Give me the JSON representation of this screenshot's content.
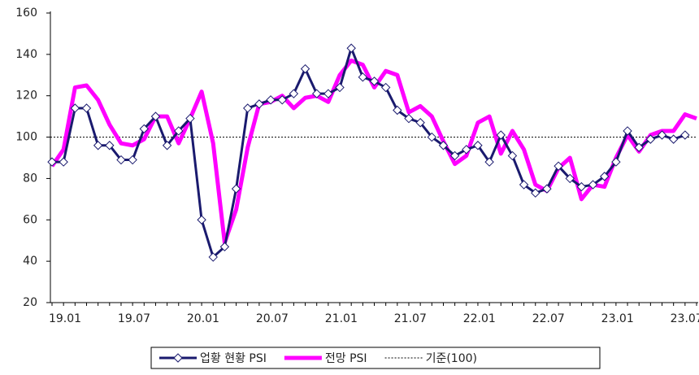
{
  "chart_data": {
    "type": "line",
    "categories": [
      "19.01",
      null,
      null,
      null,
      null,
      null,
      "19.07",
      null,
      null,
      null,
      null,
      null,
      "20.01",
      null,
      null,
      null,
      null,
      null,
      "20.07",
      null,
      null,
      null,
      null,
      null,
      "21.01",
      null,
      null,
      null,
      null,
      null,
      "21.07",
      null,
      null,
      null,
      null,
      null,
      "22.01",
      null,
      null,
      null,
      null,
      null,
      "22.07",
      null,
      null,
      null,
      null,
      null,
      "23.01",
      null,
      null,
      null,
      null,
      null,
      "23.07",
      null,
      null
    ],
    "series": [
      {
        "name": "업황 현황 PSI",
        "color": "#1a1a6e",
        "marker": "diamond",
        "values": [
          88,
          88,
          114,
          114,
          96,
          96,
          89,
          89,
          104,
          110,
          96,
          103,
          109,
          60,
          42,
          47,
          75,
          114,
          116,
          118,
          118,
          121,
          133,
          121,
          121,
          124,
          143,
          129,
          127,
          124,
          113,
          109,
          107,
          100,
          96,
          91,
          94,
          96,
          88,
          101,
          91,
          77,
          73,
          75,
          86,
          80,
          76,
          77,
          81,
          88,
          103,
          95,
          99,
          101,
          99,
          101,
          null
        ]
      },
      {
        "name": "전망 PSI",
        "color": "#ff00ff",
        "values": [
          86,
          94,
          124,
          125,
          118,
          106,
          97,
          96,
          99,
          110,
          110,
          97,
          109,
          122,
          97,
          49,
          65,
          95,
          116,
          117,
          120,
          114,
          119,
          120,
          117,
          130,
          137,
          135,
          124,
          132,
          130,
          112,
          115,
          110,
          98,
          87,
          91,
          107,
          110,
          92,
          103,
          94,
          77,
          74,
          85,
          90,
          70,
          77,
          76,
          90,
          101,
          93,
          101,
          103,
          103,
          111,
          109
        ]
      }
    ],
    "reference": {
      "value": 100,
      "label": "기준(100)"
    },
    "ylim": [
      20,
      160
    ],
    "yticks": [
      20,
      40,
      60,
      80,
      100,
      120,
      140,
      160
    ],
    "grid": false,
    "legend": "bottom"
  }
}
